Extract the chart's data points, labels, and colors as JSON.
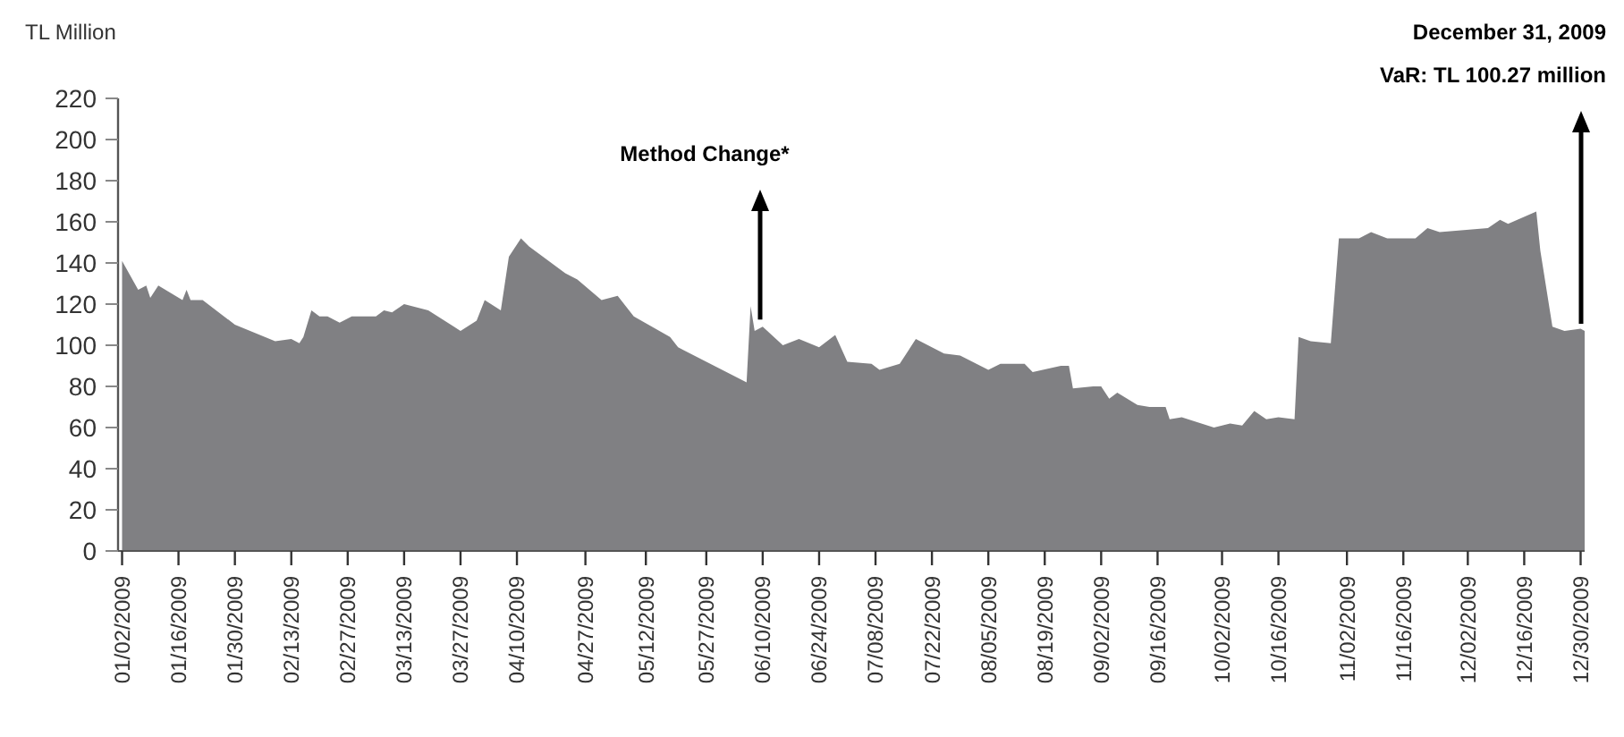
{
  "chart_data": {
    "type": "area",
    "ylabel": "TL Million",
    "annotations": [
      "Method Change*",
      "December 31, 2009",
      "VaR: TL 100.27 million"
    ],
    "xlim": [
      "2009-01-01",
      "2009-12-31"
    ],
    "xticks": [
      {
        "value": "2009-01-02",
        "label": "01/02/2009"
      },
      {
        "value": "2009-01-16",
        "label": "01/16/2009"
      },
      {
        "value": "2009-01-30",
        "label": "01/30/2009"
      },
      {
        "value": "2009-02-13",
        "label": "02/13/2009"
      },
      {
        "value": "2009-02-27",
        "label": "02/27/2009"
      },
      {
        "value": "2009-03-13",
        "label": "03/13/2009"
      },
      {
        "value": "2009-03-27",
        "label": "03/27/2009"
      },
      {
        "value": "2009-04-10",
        "label": "04/10/2009"
      },
      {
        "value": "2009-04-27",
        "label": "04/27/2009"
      },
      {
        "value": "2009-05-12",
        "label": "05/12/2009"
      },
      {
        "value": "2009-05-27",
        "label": "05/27/2009"
      },
      {
        "value": "2009-06-10",
        "label": "06/10/2009"
      },
      {
        "value": "2009-06-24",
        "label": "06/24/2009"
      },
      {
        "value": "2009-07-08",
        "label": "07/08/2009"
      },
      {
        "value": "2009-07-22",
        "label": "07/22/2009"
      },
      {
        "value": "2009-08-05",
        "label": "08/05/2009"
      },
      {
        "value": "2009-08-19",
        "label": "08/19/2009"
      },
      {
        "value": "2009-09-02",
        "label": "09/02/2009"
      },
      {
        "value": "2009-09-16",
        "label": "09/16/2009"
      },
      {
        "value": "2009-10-02",
        "label": "10/02/2009"
      },
      {
        "value": "2009-10-16",
        "label": "10/16/2009"
      },
      {
        "value": "2009-11-02",
        "label": "11/02/2009"
      },
      {
        "value": "2009-11-16",
        "label": "11/16/2009"
      },
      {
        "value": "2009-12-02",
        "label": "12/02/2009"
      },
      {
        "value": "2009-12-16",
        "label": "12/16/2009"
      },
      {
        "value": "2009-12-30",
        "label": "12/30/2009"
      }
    ],
    "ylim": [
      0,
      220
    ],
    "yticks": [
      0,
      20,
      40,
      60,
      80,
      100,
      120,
      140,
      160,
      180,
      200,
      220
    ],
    "grid": false,
    "series": [
      {
        "color": "#808083",
        "x": [
          "2009-01-02",
          "2009-01-06",
          "2009-01-08",
          "2009-01-09",
          "2009-01-11",
          "2009-01-17",
          "2009-01-18",
          "2009-01-19",
          "2009-01-22",
          "2009-01-30",
          "2009-02-09",
          "2009-02-13",
          "2009-02-15",
          "2009-02-16",
          "2009-02-18",
          "2009-02-20",
          "2009-02-22",
          "2009-02-25",
          "2009-02-28",
          "2009-03-06",
          "2009-03-08",
          "2009-03-10",
          "2009-03-13",
          "2009-03-19",
          "2009-03-27",
          "2009-03-31",
          "2009-04-02",
          "2009-04-06",
          "2009-04-08",
          "2009-04-11",
          "2009-04-13",
          "2009-04-22",
          "2009-04-25",
          "2009-05-01",
          "2009-05-05",
          "2009-05-09",
          "2009-05-18",
          "2009-05-20",
          "2009-06-06",
          "2009-06-07",
          "2009-06-08",
          "2009-06-10",
          "2009-06-15",
          "2009-06-19",
          "2009-06-24",
          "2009-06-28",
          "2009-07-01",
          "2009-07-07",
          "2009-07-09",
          "2009-07-14",
          "2009-07-18",
          "2009-07-25",
          "2009-07-29",
          "2009-08-05",
          "2009-08-08",
          "2009-08-14",
          "2009-08-16",
          "2009-08-23",
          "2009-08-25",
          "2009-08-26",
          "2009-08-31",
          "2009-09-02",
          "2009-09-04",
          "2009-09-06",
          "2009-09-11",
          "2009-09-14",
          "2009-09-18",
          "2009-09-19",
          "2009-09-22",
          "2009-09-30",
          "2009-10-04",
          "2009-10-07",
          "2009-10-10",
          "2009-10-13",
          "2009-10-16",
          "2009-10-20",
          "2009-10-21",
          "2009-10-24",
          "2009-10-29",
          "2009-10-31",
          "2009-11-05",
          "2009-11-08",
          "2009-11-12",
          "2009-11-19",
          "2009-11-22",
          "2009-11-25",
          "2009-12-07",
          "2009-12-10",
          "2009-12-12",
          "2009-12-19",
          "2009-12-20",
          "2009-12-23",
          "2009-12-26",
          "2009-12-30",
          "2009-12-31"
        ],
        "values": [
          141,
          127,
          129,
          123,
          129,
          122,
          127,
          122,
          122,
          110,
          102,
          103,
          101,
          104,
          117,
          114,
          114,
          111,
          114,
          114,
          117,
          116,
          120,
          117,
          107,
          112,
          122,
          117,
          143,
          152,
          148,
          135,
          132,
          122,
          124,
          114,
          104,
          99,
          82,
          119,
          107,
          109,
          100,
          103,
          99,
          105,
          92,
          91,
          88,
          91,
          103,
          96,
          95,
          88,
          91,
          91,
          87,
          90,
          90,
          79,
          80,
          80,
          74,
          77,
          71,
          70,
          70,
          64,
          65,
          60,
          62,
          61,
          68,
          64,
          65,
          64,
          104,
          102,
          101,
          152,
          152,
          155,
          152,
          152,
          157,
          155,
          157,
          161,
          159,
          165,
          146,
          109,
          107,
          108,
          107
        ]
      }
    ]
  }
}
